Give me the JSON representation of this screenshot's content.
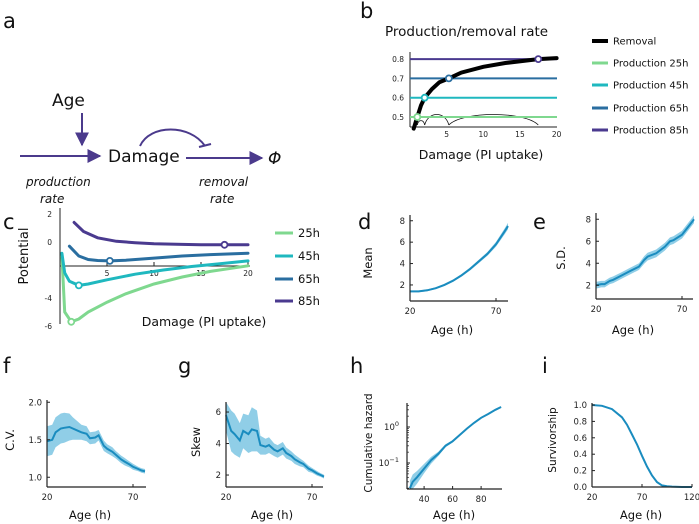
{
  "panel_labels": [
    "a",
    "b",
    "c",
    "d",
    "e",
    "f",
    "g",
    "h",
    "i"
  ],
  "diagram_a": {
    "age": "Age",
    "damage": "Damage",
    "sink": "Φ",
    "production_label": [
      "production",
      "rate"
    ],
    "removal_label": [
      "removal",
      "rate"
    ],
    "arrow_color": "#4b3a8c"
  },
  "chart_data": [
    {
      "panel": "b",
      "type": "line",
      "title": "Production/removal rate",
      "xlabel": "Damage (PI uptake)",
      "ylabel": "",
      "xlim": [
        0,
        20
      ],
      "ylim": [
        0.45,
        0.82
      ],
      "xticks": [
        "5",
        "10",
        "15",
        "20"
      ],
      "yticks": [
        "0.5",
        "0.6",
        "0.7",
        "0.8"
      ],
      "legend_position": "right",
      "series": [
        {
          "name": "Removal",
          "color": "#000000",
          "x": [
            0.5,
            1,
            1.5,
            2,
            3,
            4,
            5.3,
            7,
            10,
            13,
            17.5,
            20
          ],
          "y": [
            0.44,
            0.5,
            0.56,
            0.6,
            0.645,
            0.68,
            0.7,
            0.73,
            0.76,
            0.78,
            0.8,
            0.805
          ]
        },
        {
          "name": "Production 25h",
          "color": "#7fd88f",
          "value": 0.5,
          "intersection_x": 1
        },
        {
          "name": "Production 45h",
          "color": "#1fb8bf",
          "value": 0.6,
          "intersection_x": 2
        },
        {
          "name": "Production 65h",
          "color": "#2a6ea0",
          "value": 0.7,
          "intersection_x": 5.3
        },
        {
          "name": "Production 85h",
          "color": "#4a3a8f",
          "value": 0.8,
          "intersection_x": 17.5
        }
      ]
    },
    {
      "panel": "c",
      "type": "line",
      "xlabel": "Damage (PI uptake)",
      "ylabel": "Potential",
      "xlim": [
        0,
        20
      ],
      "ylim": [
        -6,
        2.2
      ],
      "xticks": [
        "5",
        "10",
        "15",
        "20"
      ],
      "yticks": [
        "2",
        "0",
        "-4",
        "-6"
      ],
      "legend_position": "right",
      "series": [
        {
          "name": "25h",
          "color": "#7fd88f",
          "x": [
            0.2,
            0.5,
            1.2,
            2,
            3,
            5,
            7,
            10,
            13,
            16,
            20
          ],
          "y": [
            -1.0,
            -5.0,
            -5.7,
            -5.5,
            -5.0,
            -4.3,
            -3.7,
            -3.0,
            -2.5,
            -2.1,
            -1.7
          ],
          "minimum": [
            1.2,
            -5.7
          ]
        },
        {
          "name": "45h",
          "color": "#1fb8bf",
          "x": [
            0.2,
            0.5,
            1,
            2,
            3,
            5,
            8,
            11,
            14,
            17,
            20
          ],
          "y": [
            -0.8,
            -2.2,
            -2.8,
            -3.1,
            -3.0,
            -2.7,
            -2.3,
            -2.0,
            -1.75,
            -1.55,
            -1.35
          ],
          "minimum": [
            2,
            -3.1
          ]
        },
        {
          "name": "65h",
          "color": "#2a6ea0",
          "x": [
            1,
            2,
            3,
            4,
            5.3,
            7,
            10,
            13,
            16,
            20
          ],
          "y": [
            -0.3,
            -1.0,
            -1.25,
            -1.32,
            -1.35,
            -1.3,
            -1.15,
            -1.0,
            -0.9,
            -0.8
          ],
          "minimum": [
            5.3,
            -1.35
          ]
        },
        {
          "name": "85h",
          "color": "#4a3a8f",
          "x": [
            1.5,
            2.5,
            4,
            6,
            8,
            10,
            13,
            15,
            17.5,
            20
          ],
          "y": [
            1.4,
            0.75,
            0.3,
            0.05,
            -0.05,
            -0.12,
            -0.17,
            -0.19,
            -0.2,
            -0.2
          ],
          "minimum": [
            17.5,
            -0.2
          ]
        }
      ]
    },
    {
      "panel": "d",
      "type": "line",
      "xlabel": "Age (h)",
      "ylabel": "Mean",
      "xlim": [
        20,
        77
      ],
      "ylim": [
        0.5,
        8.5
      ],
      "xticks": [
        "20",
        "70"
      ],
      "yticks": [
        "2",
        "4",
        "6",
        "8"
      ],
      "color": "#1a8cbf",
      "band_color": "#7cc6e3",
      "x": [
        20,
        25,
        30,
        35,
        40,
        45,
        50,
        55,
        60,
        65,
        70,
        75,
        77
      ],
      "y": [
        1.4,
        1.4,
        1.5,
        1.7,
        2.0,
        2.4,
        2.9,
        3.5,
        4.2,
        4.9,
        5.8,
        7.0,
        7.5
      ],
      "band": [
        0.08,
        0.08,
        0.08,
        0.08,
        0.1,
        0.1,
        0.12,
        0.14,
        0.16,
        0.18,
        0.22,
        0.28,
        0.3
      ]
    },
    {
      "panel": "e",
      "type": "line",
      "xlabel": "Age (h)",
      "ylabel": "S.D.",
      "xlim": [
        20,
        77
      ],
      "ylim": [
        0.75,
        8.5
      ],
      "xticks": [
        "20",
        "70"
      ],
      "yticks": [
        "2",
        "4",
        "6",
        "8"
      ],
      "color": "#1a8cbf",
      "band_color": "#7cc6e3",
      "x": [
        20,
        23,
        25,
        28,
        30,
        35,
        40,
        45,
        48,
        50,
        55,
        60,
        63,
        65,
        70,
        75,
        77
      ],
      "y": [
        2.0,
        2.1,
        2.1,
        2.4,
        2.5,
        2.9,
        3.3,
        3.7,
        4.3,
        4.6,
        4.9,
        5.5,
        6.0,
        6.1,
        6.6,
        7.6,
        8.0
      ],
      "band": [
        0.3,
        0.3,
        0.3,
        0.3,
        0.3,
        0.3,
        0.3,
        0.3,
        0.35,
        0.35,
        0.35,
        0.35,
        0.35,
        0.35,
        0.35,
        0.35,
        0.35
      ]
    },
    {
      "panel": "f",
      "type": "line",
      "xlabel": "Age (h)",
      "ylabel": "C.V.",
      "xlim": [
        20,
        77
      ],
      "ylim": [
        0.87,
        2.0
      ],
      "xticks": [
        "20",
        "70"
      ],
      "yticks": [
        "2.0",
        "1.5",
        "1.0"
      ],
      "color": "#1a8cbf",
      "band_color": "#7cc6e3",
      "x": [
        20,
        23,
        25,
        28,
        30,
        33,
        35,
        38,
        40,
        43,
        45,
        48,
        50,
        53,
        55,
        58,
        60,
        63,
        65,
        68,
        70,
        73,
        75,
        77
      ],
      "y": [
        1.48,
        1.5,
        1.6,
        1.65,
        1.66,
        1.67,
        1.65,
        1.62,
        1.6,
        1.58,
        1.52,
        1.53,
        1.56,
        1.42,
        1.38,
        1.34,
        1.3,
        1.24,
        1.21,
        1.17,
        1.14,
        1.11,
        1.09,
        1.08
      ],
      "band": [
        0.2,
        0.2,
        0.2,
        0.2,
        0.2,
        0.18,
        0.15,
        0.12,
        0.1,
        0.1,
        0.08,
        0.08,
        0.07,
        0.07,
        0.06,
        0.06,
        0.05,
        0.05,
        0.05,
        0.04,
        0.04,
        0.03,
        0.03,
        0.03
      ]
    },
    {
      "panel": "g",
      "type": "line",
      "xlabel": "Age (h)",
      "ylabel": "Skew",
      "xlim": [
        20,
        77
      ],
      "ylim": [
        1.24,
        6.6
      ],
      "xticks": [
        "20",
        "70"
      ],
      "yticks": [
        "6",
        "4",
        "2"
      ],
      "color": "#1a8cbf",
      "band_color": "#7cc6e3",
      "x": [
        20,
        23,
        25,
        28,
        30,
        33,
        35,
        38,
        40,
        43,
        45,
        48,
        50,
        53,
        55,
        58,
        60,
        63,
        65,
        68,
        70,
        73,
        75,
        77
      ],
      "y": [
        5.8,
        4.8,
        4.6,
        4.2,
        4.8,
        4.6,
        4.9,
        4.8,
        3.9,
        3.8,
        3.9,
        3.6,
        3.5,
        3.7,
        3.4,
        3.2,
        3.0,
        2.8,
        2.7,
        2.4,
        2.3,
        2.1,
        2.0,
        1.9
      ],
      "band": [
        1.0,
        1.3,
        1.3,
        1.1,
        1.1,
        1.2,
        1.4,
        1.3,
        0.6,
        0.5,
        0.5,
        0.4,
        0.4,
        0.4,
        0.35,
        0.3,
        0.3,
        0.25,
        0.2,
        0.2,
        0.15,
        0.15,
        0.12,
        0.12
      ]
    },
    {
      "panel": "h",
      "type": "line",
      "xlabel": "Age (h)",
      "ylabel": "Cumulative hazard",
      "yscale": "log",
      "xlim": [
        28,
        94.5
      ],
      "ylim": [
        0.019,
        4.6
      ],
      "xticks": [
        "40",
        "60",
        "80"
      ],
      "yticks": [
        {
          "base": "10",
          "exp": "0"
        },
        {
          "base": "10",
          "exp": "−1"
        }
      ],
      "color": "#1a8cbf",
      "band_color": "#7cc6e3",
      "x": [
        30,
        32,
        35,
        40,
        45,
        50,
        55,
        60,
        65,
        70,
        75,
        80,
        85,
        90,
        94
      ],
      "y": [
        0.02,
        0.03,
        0.04,
        0.07,
        0.12,
        0.18,
        0.3,
        0.4,
        0.6,
        0.9,
        1.3,
        1.8,
        2.3,
        3.0,
        3.6
      ],
      "band_ratio": [
        1.6,
        1.6,
        1.5,
        1.35,
        1.25,
        1.15,
        1.1,
        1.08,
        1.06,
        1.05,
        1.05,
        1.05,
        1.05,
        1.05,
        1.05
      ]
    },
    {
      "panel": "i",
      "type": "line",
      "xlabel": "Age (h)",
      "ylabel": "Survivorship",
      "xlim": [
        20,
        120
      ],
      "ylim": [
        0,
        1.0
      ],
      "xticks": [
        "20",
        "70",
        "120"
      ],
      "yticks": [
        "1.0",
        "0.8",
        "0.6",
        "0.4",
        "0.2",
        "0.0"
      ],
      "color": "#1a8cbf",
      "band_color": "#7cc6e3",
      "x": [
        20,
        30,
        40,
        50,
        55,
        60,
        65,
        70,
        75,
        80,
        85,
        90,
        95,
        100,
        110,
        120
      ],
      "y": [
        1,
        0.99,
        0.95,
        0.85,
        0.76,
        0.64,
        0.52,
        0.38,
        0.25,
        0.14,
        0.06,
        0.02,
        0.01,
        0.005,
        0,
        0
      ],
      "band": [
        0.01,
        0.01,
        0.01,
        0.015,
        0.015,
        0.015,
        0.015,
        0.015,
        0.015,
        0.01,
        0.01,
        0.005,
        0.005,
        0,
        0,
        0
      ]
    }
  ]
}
